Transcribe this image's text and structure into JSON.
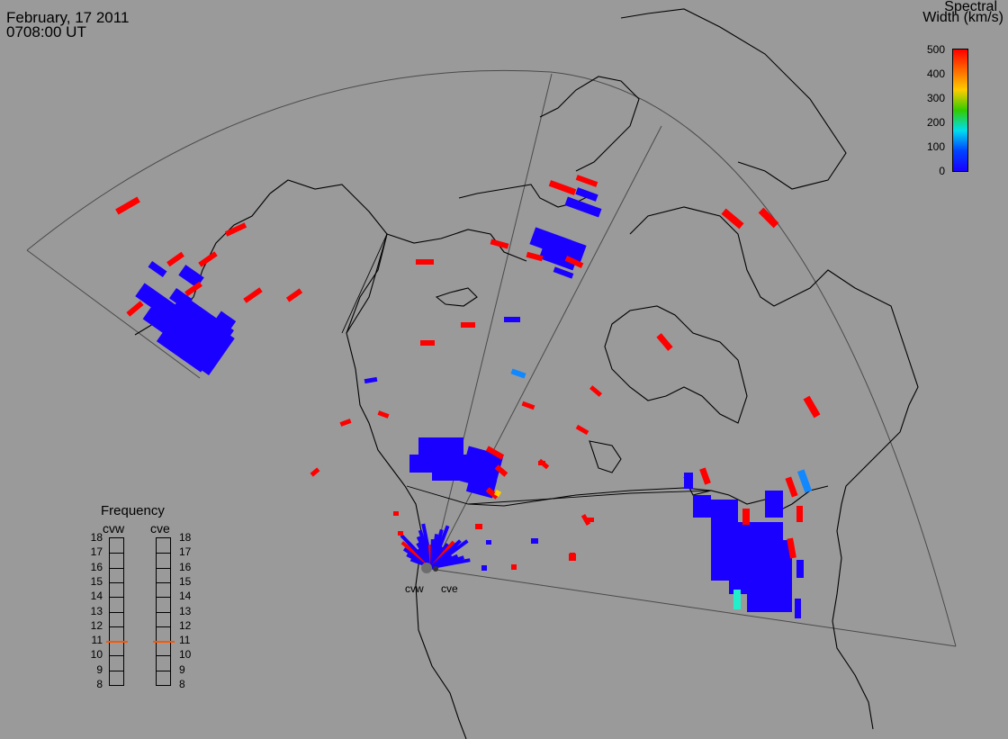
{
  "header": {
    "date": "February, 17 2011",
    "time": "0708:00 UT"
  },
  "colorbar": {
    "title_line1": "Spectral",
    "title_line2": "Width (km/s)",
    "ticks": [
      "500",
      "400",
      "300",
      "200",
      "100",
      "0"
    ],
    "stops": [
      "#ff0000",
      "#ff6600",
      "#ffcc00",
      "#33cc00",
      "#00ddee",
      "#0044ff",
      "#1a00ff"
    ]
  },
  "frequency_panel": {
    "title": "Frequency",
    "radars": [
      "cvw",
      "cve"
    ],
    "levels": [
      "18",
      "17",
      "16",
      "15",
      "14",
      "13",
      "12",
      "11",
      "10",
      "9",
      "8"
    ],
    "indicator_value": "11",
    "indicator_color": "#ff5500"
  },
  "radar_sites": [
    {
      "id": "cvw",
      "label": "cvw"
    },
    {
      "id": "cve",
      "label": "cve"
    }
  ],
  "colors": {
    "background": "#9a9a9a",
    "low_width": "#1a00ff",
    "high_width": "#ff0000",
    "mid_width": "#1188ff",
    "outline": "#000000"
  }
}
